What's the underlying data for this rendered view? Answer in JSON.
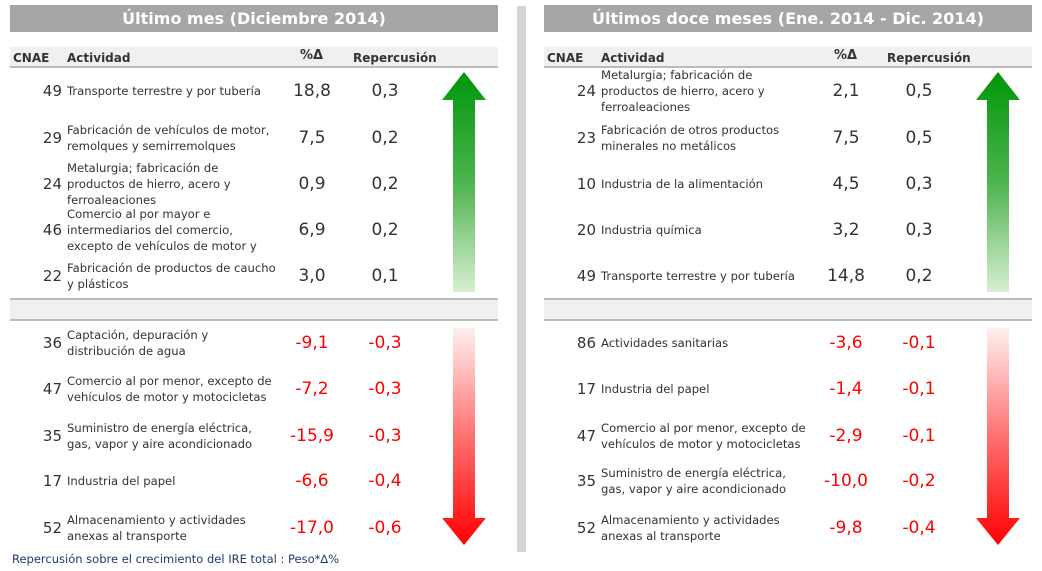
{
  "left": {
    "title": "Último mes (Diciembre 2014)",
    "headers": {
      "cnae": "CNAE",
      "actividad": "Actividad",
      "pct": "%Δ",
      "rep": "Repercusión"
    },
    "positive": [
      {
        "cnae": "49",
        "actividad": "Transporte terrestre y por tubería",
        "pct": "18,8",
        "rep": "0,3"
      },
      {
        "cnae": "29",
        "actividad": "Fabricación de vehículos de motor, remolques y semirremolques",
        "pct": "7,5",
        "rep": "0,2"
      },
      {
        "cnae": "24",
        "actividad": "Metalurgia; fabricación de productos de hierro, acero y ferroaleaciones",
        "pct": "0,9",
        "rep": "0,2"
      },
      {
        "cnae": "46",
        "actividad": "Comercio al por mayor e intermediarios del comercio, excepto de vehículos de motor y",
        "pct": "6,9",
        "rep": "0,2"
      },
      {
        "cnae": "22",
        "actividad": "Fabricación de productos de caucho y plásticos",
        "pct": "3,0",
        "rep": "0,1"
      }
    ],
    "negative": [
      {
        "cnae": "36",
        "actividad": "Captación, depuración y distribución de agua",
        "pct": "-9,1",
        "rep": "-0,3"
      },
      {
        "cnae": "47",
        "actividad": "Comercio al por menor, excepto de vehículos de motor y motocicletas",
        "pct": "-7,2",
        "rep": "-0,3"
      },
      {
        "cnae": "35",
        "actividad": "Suministro de energía eléctrica, gas, vapor y aire acondicionado",
        "pct": "-15,9",
        "rep": "-0,3"
      },
      {
        "cnae": "17",
        "actividad": "Industria del papel",
        "pct": "-6,6",
        "rep": "-0,4"
      },
      {
        "cnae": "52",
        "actividad": "Almacenamiento y actividades anexas al transporte",
        "pct": "-17,0",
        "rep": "-0,6"
      }
    ]
  },
  "right": {
    "title": "Últimos doce meses  (Ene. 2014 - Dic. 2014)",
    "headers": {
      "cnae": "CNAE",
      "actividad": "Actividad",
      "pct": "%Δ",
      "rep": "Repercusión"
    },
    "positive": [
      {
        "cnae": "24",
        "actividad": "Metalurgia; fabricación de productos de hierro, acero y ferroaleaciones",
        "pct": "2,1",
        "rep": "0,5"
      },
      {
        "cnae": "23",
        "actividad": "Fabricación de otros productos minerales no metálicos",
        "pct": "7,5",
        "rep": "0,5"
      },
      {
        "cnae": "10",
        "actividad": "Industria de la alimentación",
        "pct": "4,5",
        "rep": "0,3"
      },
      {
        "cnae": "20",
        "actividad": "Industria química",
        "pct": "3,2",
        "rep": "0,3"
      },
      {
        "cnae": "49",
        "actividad": "Transporte terrestre y por tubería",
        "pct": "14,8",
        "rep": "0,2"
      }
    ],
    "negative": [
      {
        "cnae": "86",
        "actividad": "Actividades sanitarias",
        "pct": "-3,6",
        "rep": "-0,1"
      },
      {
        "cnae": "17",
        "actividad": "Industria del papel",
        "pct": "-1,4",
        "rep": "-0,1"
      },
      {
        "cnae": "47",
        "actividad": "Comercio al por menor, excepto de vehículos de motor y motocicletas",
        "pct": "-2,9",
        "rep": "-0,1"
      },
      {
        "cnae": "35",
        "actividad": "Suministro de energía eléctrica, gas, vapor y aire acondicionado",
        "pct": "-10,0",
        "rep": "-0,2"
      },
      {
        "cnae": "52",
        "actividad": "Almacenamiento y actividades anexas al transporte",
        "pct": "-9,8",
        "rep": "-0,4"
      }
    ]
  },
  "footer": "Repercusión sobre el crecimiento del IRE total : Peso*∆%",
  "colors": {
    "positive": "#009900",
    "negative": "#ff0000",
    "title_bg": "#a6a6a6"
  }
}
